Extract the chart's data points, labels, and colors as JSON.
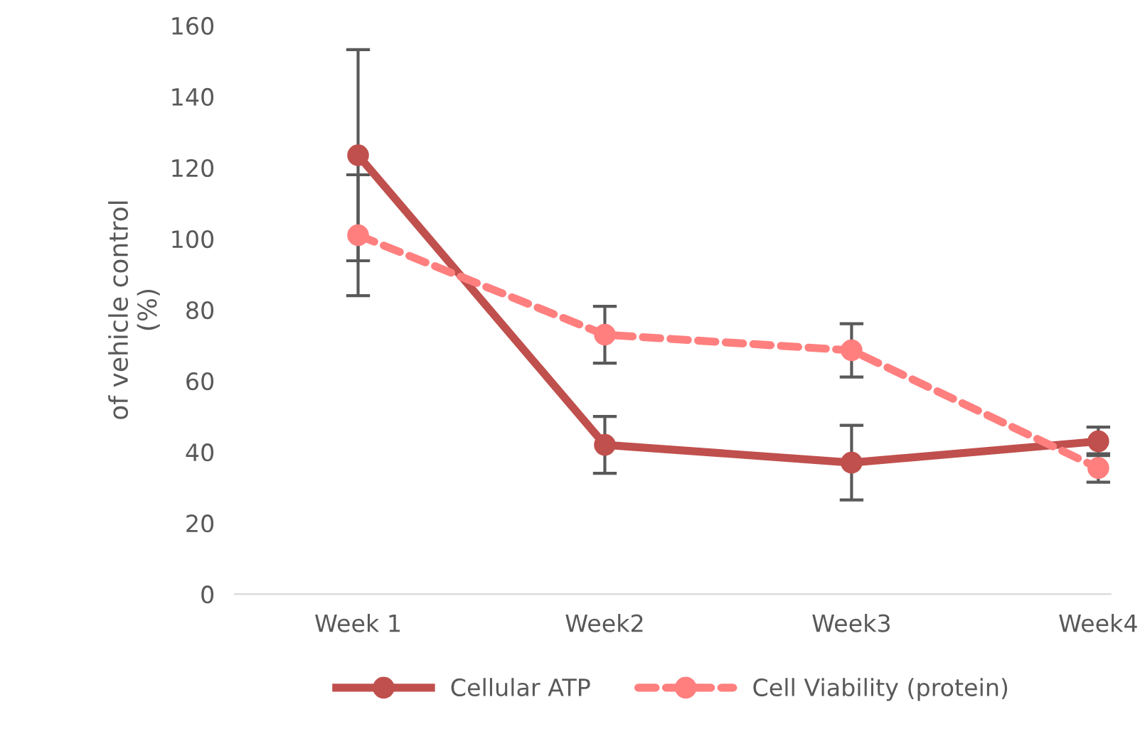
{
  "chart_data": {
    "type": "line",
    "ylabel": "of vehicle control\n(%)",
    "categories": [
      "Week 1",
      "Week2",
      "Week3",
      "Week4"
    ],
    "series": [
      {
        "name": "Cellular ATP",
        "color": "#c0504d",
        "values": [
          123.5,
          42,
          37,
          43
        ],
        "errors": [
          29.7,
          8,
          10.5,
          4
        ],
        "line_style": "solid"
      },
      {
        "name": "Cell Viability (protein)",
        "color": "#ff7f7f",
        "values": [
          101,
          73,
          68.6,
          35.5
        ],
        "errors": [
          17,
          8,
          7.5,
          4
        ],
        "line_style": "dashed"
      }
    ],
    "ylim": [
      0,
      160
    ],
    "yticks": [
      0,
      20,
      40,
      60,
      80,
      100,
      120,
      140,
      160
    ],
    "grid": false,
    "legend": "bottom",
    "marker": "circle"
  }
}
